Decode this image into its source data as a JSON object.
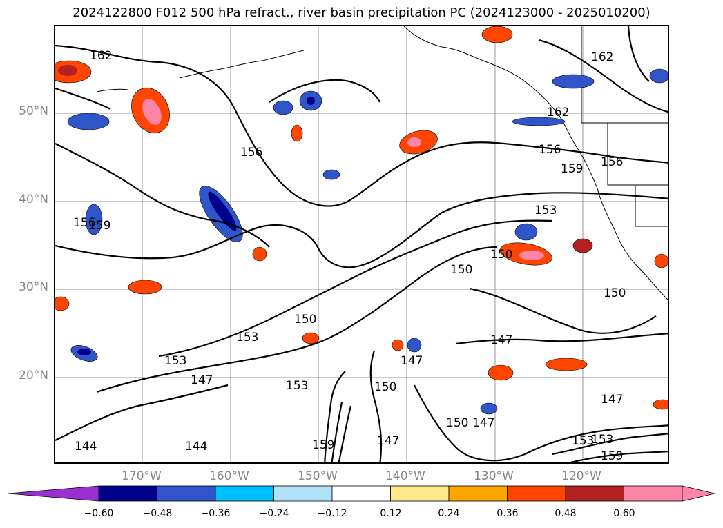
{
  "title": "2024122800 F012 500 hPa refract., river basin precipitation PC (2024123000 - 2025010200)",
  "lat_labels": [
    "50°N",
    "40°N",
    "30°N",
    "20°N"
  ],
  "lon_labels": [
    "170°W",
    "160°W",
    "150°W",
    "140°W",
    "130°W",
    "120°W"
  ],
  "contour_labels": [
    "162",
    "162",
    "162",
    "156",
    "156",
    "156",
    "156",
    "159",
    "159",
    "159",
    "159",
    "153",
    "153",
    "153",
    "153",
    "153",
    "153",
    "150",
    "150",
    "150",
    "150",
    "150",
    "150",
    "147",
    "147",
    "147",
    "147",
    "147",
    "147",
    "144",
    "144"
  ],
  "colorbar": {
    "ticks": [
      "−0.60",
      "−0.48",
      "−0.36",
      "−0.24",
      "−0.12",
      "0.12",
      "0.24",
      "0.36",
      "0.48",
      "0.60"
    ],
    "colors": [
      "#9b30d0",
      "#00008b",
      "#2f55c8",
      "#00bfff",
      "#b0e2fa",
      "#ffffff",
      "#ffe88a",
      "#ffa500",
      "#ff4500",
      "#b22222",
      "#ff85a8",
      "#ff85a8"
    ]
  }
}
